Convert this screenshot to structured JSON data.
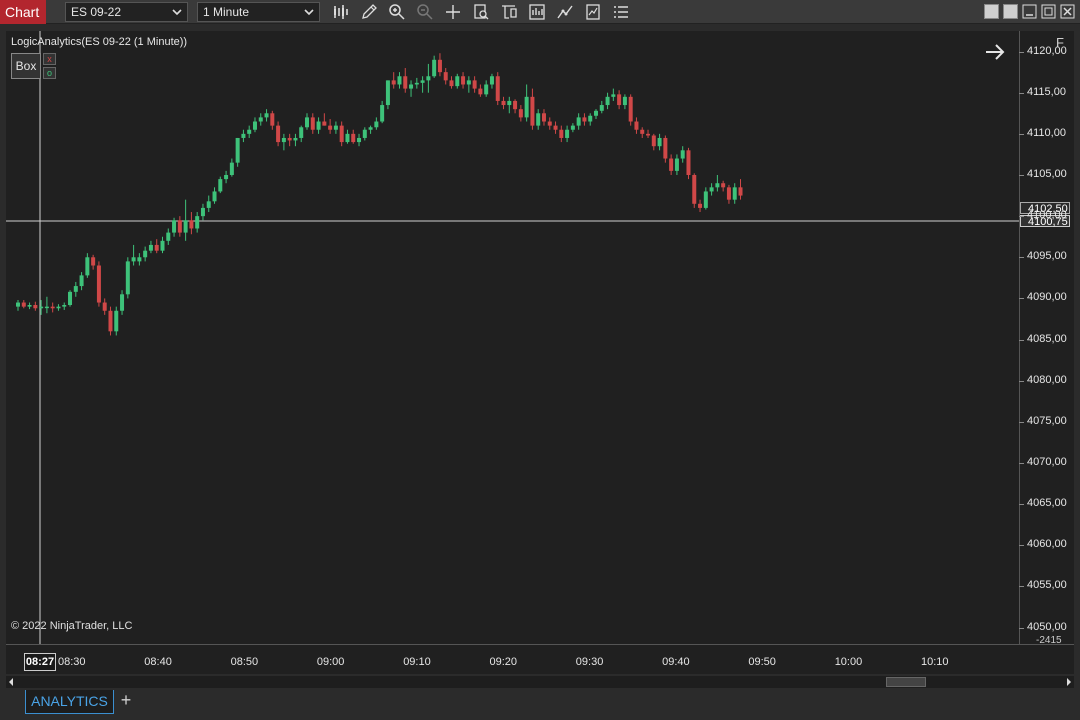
{
  "window": {
    "app_tab_label": "Chart"
  },
  "toolbar": {
    "instrument": "ES 09-22",
    "interval": "1 Minute",
    "icons": [
      "bar-type-icon",
      "drawing-tool-icon",
      "zoom-in-icon",
      "zoom-out-icon",
      "crosshair-icon",
      "data-box-icon",
      "template-icon",
      "chart-trader-icon",
      "strategy-icon",
      "indicators-icon",
      "properties-icon"
    ]
  },
  "chart": {
    "indicator_label": "LogicAnalytics(ES 09-22 (1 Minute))",
    "box_button": "Box",
    "mini_x": "x",
    "mini_o": "o",
    "f_button": "F",
    "copyright": "© 2022 NinjaTrader, LLC",
    "last_price_tag": "4102,50",
    "crosshair_price_tag": "4100,75",
    "crosshair_time_tag": "08:27",
    "bottom_price_tag": "-2415",
    "colors": {
      "up": "#3ec27a",
      "down": "#d04848",
      "background": "#202020"
    }
  },
  "chart_data": {
    "type": "candlestick",
    "instrument": "ES 09-22",
    "interval": "1 Minute",
    "x_ticks": [
      "08:30",
      "08:40",
      "08:50",
      "09:00",
      "09:10",
      "09:20",
      "09:30",
      "09:40",
      "09:50",
      "10:00",
      "10:10"
    ],
    "y_ticks": [
      "4120,00",
      "4115,00",
      "4110,00",
      "4105,00",
      "4100,00",
      "4095,00",
      "4090,00",
      "4085,00",
      "4080,00",
      "4075,00",
      "4070,00",
      "4065,00",
      "4060,00",
      "4055,00",
      "4050,00"
    ],
    "ylim": [
      4048,
      4122.5
    ],
    "start_time": "08:26",
    "bars": [
      [
        4089.0,
        4089.8,
        4088.5,
        4089.5
      ],
      [
        4089.5,
        4089.8,
        4088.8,
        4089.0
      ],
      [
        4089.0,
        4089.5,
        4088.7,
        4089.2
      ],
      [
        4089.2,
        4089.6,
        4088.5,
        4088.8
      ],
      [
        4088.8,
        4089.8,
        4088.0,
        4089.0
      ],
      [
        4089.0,
        4090.2,
        4088.2,
        4089.0
      ],
      [
        4089.0,
        4089.5,
        4088.3,
        4088.8
      ],
      [
        4088.8,
        4089.3,
        4088.5,
        4089.0
      ],
      [
        4089.0,
        4089.5,
        4088.6,
        4089.2
      ],
      [
        4089.2,
        4091.0,
        4089.0,
        4090.8
      ],
      [
        4090.8,
        4092.0,
        4090.2,
        4091.5
      ],
      [
        4091.5,
        4093.2,
        4091.0,
        4092.8
      ],
      [
        4092.8,
        4095.5,
        4092.5,
        4095.0
      ],
      [
        4095.0,
        4095.3,
        4093.5,
        4094.0
      ],
      [
        4094.0,
        4094.5,
        4089.0,
        4089.5
      ],
      [
        4089.5,
        4090.0,
        4088.0,
        4088.5
      ],
      [
        4088.5,
        4089.0,
        4085.5,
        4086.0
      ],
      [
        4086.0,
        4089.0,
        4085.5,
        4088.5
      ],
      [
        4088.5,
        4091.0,
        4088.0,
        4090.5
      ],
      [
        4090.5,
        4095.0,
        4090.0,
        4094.5
      ],
      [
        4094.5,
        4096.5,
        4094.0,
        4095.0
      ],
      [
        4094.5,
        4095.5,
        4094.0,
        4095.0
      ],
      [
        4095.0,
        4096.3,
        4094.5,
        4095.8
      ],
      [
        4095.8,
        4097.0,
        4095.5,
        4096.5
      ],
      [
        4096.5,
        4097.2,
        4095.5,
        4095.8
      ],
      [
        4095.8,
        4097.5,
        4095.5,
        4097.0
      ],
      [
        4097.0,
        4098.5,
        4096.5,
        4098.0
      ],
      [
        4098.0,
        4099.8,
        4097.5,
        4099.5
      ],
      [
        4099.5,
        4100.0,
        4097.5,
        4098.0
      ],
      [
        4098.0,
        4102.0,
        4097.0,
        4099.5
      ],
      [
        4099.5,
        4100.5,
        4097.8,
        4098.5
      ],
      [
        4098.5,
        4100.5,
        4098.0,
        4100.0
      ],
      [
        4100.0,
        4101.5,
        4099.5,
        4101.0
      ],
      [
        4101.0,
        4102.5,
        4100.5,
        4101.8
      ],
      [
        4101.8,
        4103.5,
        4101.5,
        4103.0
      ],
      [
        4103.0,
        4104.8,
        4102.8,
        4104.5
      ],
      [
        4104.5,
        4105.5,
        4104.0,
        4105.0
      ],
      [
        4105.0,
        4107.0,
        4104.8,
        4106.5
      ],
      [
        4106.5,
        4109.5,
        4106.0,
        4109.5
      ],
      [
        4109.5,
        4110.5,
        4109.0,
        4110.0
      ],
      [
        4110.0,
        4111.0,
        4109.5,
        4110.5
      ],
      [
        4110.5,
        4112.0,
        4110.2,
        4111.5
      ],
      [
        4111.5,
        4112.5,
        4111.0,
        4112.0
      ],
      [
        4112.0,
        4113.0,
        4111.5,
        4112.5
      ],
      [
        4112.5,
        4112.8,
        4110.5,
        4111.0
      ],
      [
        4111.0,
        4111.5,
        4108.5,
        4109.0
      ],
      [
        4109.0,
        4110.0,
        4108.0,
        4109.5
      ],
      [
        4109.5,
        4110.0,
        4108.5,
        4109.2
      ],
      [
        4109.2,
        4110.0,
        4108.5,
        4109.5
      ],
      [
        4109.5,
        4111.0,
        4109.0,
        4110.8
      ],
      [
        4110.8,
        4112.5,
        4110.5,
        4112.0
      ],
      [
        4112.0,
        4112.5,
        4110.0,
        4110.5
      ],
      [
        4110.5,
        4112.0,
        4110.0,
        4111.5
      ],
      [
        4111.5,
        4112.5,
        4111.0,
        4111.0
      ],
      [
        4111.0,
        4111.8,
        4110.0,
        4110.5
      ],
      [
        4110.5,
        4111.5,
        4110.0,
        4111.0
      ],
      [
        4111.0,
        4111.5,
        4108.5,
        4109.0
      ],
      [
        4109.0,
        4110.5,
        4108.8,
        4110.0
      ],
      [
        4110.0,
        4110.5,
        4108.8,
        4109.0
      ],
      [
        4109.0,
        4110.0,
        4108.5,
        4109.5
      ],
      [
        4109.5,
        4110.8,
        4109.2,
        4110.5
      ],
      [
        4110.5,
        4111.0,
        4110.0,
        4110.8
      ],
      [
        4110.8,
        4112.0,
        4110.5,
        4111.5
      ],
      [
        4111.5,
        4114.0,
        4111.3,
        4113.5
      ],
      [
        4113.5,
        4116.5,
        4113.0,
        4116.5
      ],
      [
        4116.5,
        4117.5,
        4115.5,
        4116.0
      ],
      [
        4116.0,
        4117.5,
        4115.5,
        4117.0
      ],
      [
        4117.0,
        4118.0,
        4115.0,
        4115.5
      ],
      [
        4115.5,
        4116.5,
        4114.5,
        4116.0
      ],
      [
        4116.0,
        4116.8,
        4115.5,
        4116.2
      ],
      [
        4116.2,
        4117.0,
        4115.0,
        4116.5
      ],
      [
        4116.5,
        4118.5,
        4115.0,
        4117.0
      ],
      [
        4117.0,
        4119.5,
        4116.8,
        4119.0
      ],
      [
        4119.0,
        4119.8,
        4117.0,
        4117.5
      ],
      [
        4117.5,
        4118.0,
        4116.0,
        4116.5
      ],
      [
        4116.5,
        4117.0,
        4115.5,
        4115.8
      ],
      [
        4115.8,
        4117.3,
        4115.5,
        4117.0
      ],
      [
        4117.0,
        4117.5,
        4115.5,
        4116.0
      ],
      [
        4116.0,
        4117.0,
        4115.0,
        4116.5
      ],
      [
        4116.5,
        4117.0,
        4115.0,
        4115.5
      ],
      [
        4115.5,
        4116.0,
        4114.5,
        4114.8
      ],
      [
        4114.8,
        4116.5,
        4114.5,
        4116.0
      ],
      [
        4116.0,
        4117.3,
        4115.5,
        4117.0
      ],
      [
        4117.0,
        4117.5,
        4113.5,
        4114.0
      ],
      [
        4114.0,
        4114.5,
        4113.0,
        4113.5
      ],
      [
        4113.5,
        4114.5,
        4112.5,
        4114.0
      ],
      [
        4114.0,
        4114.2,
        4112.5,
        4113.0
      ],
      [
        4113.0,
        4113.5,
        4111.5,
        4112.0
      ],
      [
        4112.0,
        4116.0,
        4111.5,
        4114.5
      ],
      [
        4114.5,
        4115.5,
        4110.5,
        4111.0
      ],
      [
        4111.0,
        4113.0,
        4110.5,
        4112.5
      ],
      [
        4112.5,
        4113.0,
        4111.0,
        4111.5
      ],
      [
        4111.5,
        4112.0,
        4110.5,
        4111.0
      ],
      [
        4111.0,
        4111.5,
        4110.0,
        4110.5
      ],
      [
        4110.5,
        4111.0,
        4109.0,
        4109.5
      ],
      [
        4109.5,
        4111.0,
        4109.0,
        4110.5
      ],
      [
        4110.5,
        4111.3,
        4110.2,
        4111.0
      ],
      [
        4111.0,
        4112.5,
        4110.5,
        4112.0
      ],
      [
        4112.0,
        4112.5,
        4111.0,
        4111.5
      ],
      [
        4111.5,
        4112.5,
        4111.0,
        4112.2
      ],
      [
        4112.2,
        4113.0,
        4111.8,
        4112.8
      ],
      [
        4112.8,
        4114.0,
        4112.5,
        4113.5
      ],
      [
        4113.5,
        4115.0,
        4113.0,
        4114.5
      ],
      [
        4114.5,
        4115.5,
        4114.0,
        4114.8
      ],
      [
        4114.8,
        4115.3,
        4113.0,
        4113.5
      ],
      [
        4113.5,
        4114.8,
        4113.0,
        4114.5
      ],
      [
        4114.5,
        4114.8,
        4111.0,
        4111.5
      ],
      [
        4111.5,
        4112.0,
        4110.0,
        4110.5
      ],
      [
        4110.5,
        4110.8,
        4109.5,
        4110.0
      ],
      [
        4110.0,
        4110.5,
        4109.5,
        4109.8
      ],
      [
        4109.8,
        4110.0,
        4108.0,
        4108.5
      ],
      [
        4108.5,
        4110.0,
        4108.0,
        4109.5
      ],
      [
        4109.5,
        4109.8,
        4106.5,
        4107.0
      ],
      [
        4107.0,
        4107.5,
        4105.0,
        4105.5
      ],
      [
        4105.5,
        4107.5,
        4105.0,
        4107.0
      ],
      [
        4107.0,
        4108.5,
        4106.5,
        4108.0
      ],
      [
        4108.0,
        4108.3,
        4104.5,
        4105.0
      ],
      [
        4105.0,
        4105.2,
        4101.0,
        4101.5
      ],
      [
        4101.5,
        4102.0,
        4100.5,
        4101.0
      ],
      [
        4101.0,
        4103.5,
        4100.8,
        4103.0
      ],
      [
        4103.0,
        4104.0,
        4102.5,
        4103.5
      ],
      [
        4103.5,
        4105.0,
        4103.0,
        4104.0
      ],
      [
        4104.0,
        4104.3,
        4103.0,
        4103.5
      ],
      [
        4103.5,
        4103.8,
        4101.5,
        4102.0
      ],
      [
        4102.0,
        4104.0,
        4101.5,
        4103.5
      ],
      [
        4103.5,
        4104.5,
        4102.0,
        4102.5
      ]
    ]
  }
}
